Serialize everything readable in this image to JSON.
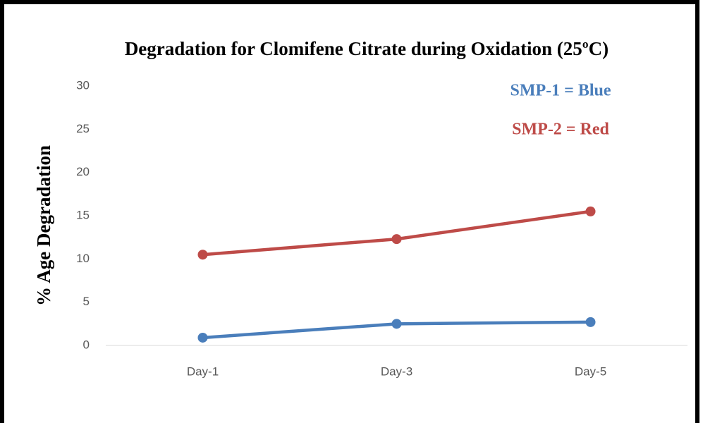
{
  "chart_data": {
    "type": "line",
    "title": "Degradation for Clomifene Citrate during Oxidation (25ºC)",
    "y_label": "% Age Degradation",
    "categories": [
      "Day-1",
      "Day-3",
      "Day-5"
    ],
    "series": [
      {
        "name": "SMP-1 = Blue",
        "color": "#4a7ebb",
        "values": [
          0.9,
          2.5,
          2.7
        ]
      },
      {
        "name": "SMP-2 = Red",
        "color": "#be4b48",
        "values": [
          10.5,
          12.3,
          15.5
        ]
      }
    ],
    "ylim": [
      0,
      30
    ],
    "yticks": [
      0,
      5,
      10,
      15,
      20,
      25,
      30
    ],
    "grid": false
  }
}
